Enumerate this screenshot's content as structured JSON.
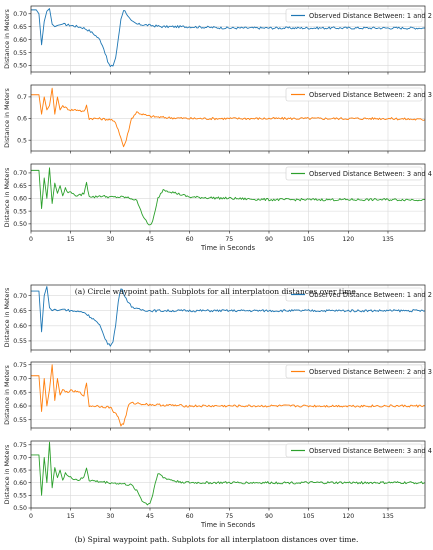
{
  "captions": [
    "(a)  Circle waypoint path. Subplots for all interplatoon distances over time.",
    "(b)  Spiral waypoint path. Subplots for all interplatoon distances over time."
  ],
  "colors": {
    "series_1_2": "#1f77b4",
    "series_2_3": "#ff7f0e",
    "series_3_4": "#2ca02c"
  },
  "chart_data": [
    {
      "type": "line",
      "figure": "a",
      "panel": 1,
      "ylabel": "Distance in Meters",
      "xlabel": "",
      "xlim": [
        0,
        149
      ],
      "ylim": [
        0.475,
        0.73
      ],
      "yticks": [
        0.5,
        0.55,
        0.6,
        0.65,
        0.7
      ],
      "xticks": [
        0,
        15,
        30,
        45,
        60,
        75,
        90,
        105,
        120,
        135
      ],
      "xtick_labels_shown": false,
      "grid": true,
      "legend": "top-right",
      "series": [
        {
          "name": "Observed Distance Between: 1 and 2",
          "color": "#1f77b4",
          "x": [
            0,
            2,
            3,
            4,
            5,
            6,
            7,
            8,
            9,
            10,
            12,
            15,
            18,
            20,
            22,
            24,
            26,
            27,
            28,
            29,
            30,
            31,
            32,
            33,
            34,
            35,
            36,
            37,
            38,
            40,
            45,
            50,
            60,
            75,
            90,
            105,
            120,
            135,
            149
          ],
          "y": [
            0.715,
            0.715,
            0.7,
            0.58,
            0.67,
            0.71,
            0.72,
            0.66,
            0.65,
            0.655,
            0.66,
            0.655,
            0.65,
            0.645,
            0.635,
            0.62,
            0.6,
            0.58,
            0.55,
            0.515,
            0.495,
            0.5,
            0.53,
            0.6,
            0.68,
            0.715,
            0.705,
            0.685,
            0.67,
            0.66,
            0.655,
            0.65,
            0.65,
            0.645,
            0.645,
            0.645,
            0.645,
            0.645,
            0.645
          ]
        }
      ]
    },
    {
      "type": "line",
      "figure": "a",
      "panel": 2,
      "ylabel": "Distance in Meters",
      "xlabel": "",
      "xlim": [
        0,
        149
      ],
      "ylim": [
        0.45,
        0.755
      ],
      "yticks": [
        0.5,
        0.6,
        0.7
      ],
      "xticks": [
        0,
        15,
        30,
        45,
        60,
        75,
        90,
        105,
        120,
        135
      ],
      "xtick_labels_shown": false,
      "grid": true,
      "legend": "top-right",
      "series": [
        {
          "name": "Observed Distance Between: 2 and 3",
          "color": "#ff7f0e",
          "x": [
            0,
            3,
            4,
            5,
            6,
            7,
            8,
            9,
            10,
            11,
            12,
            13,
            14,
            15,
            18,
            20,
            21,
            22,
            25,
            30,
            32,
            33,
            34,
            35,
            36,
            37,
            38,
            40,
            42,
            45,
            50,
            60,
            75,
            90,
            105,
            120,
            135,
            149
          ],
          "y": [
            0.71,
            0.71,
            0.62,
            0.7,
            0.64,
            0.66,
            0.74,
            0.62,
            0.7,
            0.64,
            0.66,
            0.65,
            0.645,
            0.64,
            0.64,
            0.63,
            0.66,
            0.6,
            0.6,
            0.595,
            0.58,
            0.55,
            0.51,
            0.47,
            0.5,
            0.55,
            0.6,
            0.63,
            0.62,
            0.61,
            0.605,
            0.6,
            0.6,
            0.6,
            0.6,
            0.6,
            0.6,
            0.595
          ]
        }
      ]
    },
    {
      "type": "line",
      "figure": "a",
      "panel": 3,
      "ylabel": "Distance in Meters",
      "xlabel": "Time in Seconds",
      "xlim": [
        0,
        149
      ],
      "ylim": [
        0.472,
        0.735
      ],
      "yticks": [
        0.5,
        0.55,
        0.6,
        0.65,
        0.7
      ],
      "xticks": [
        0,
        15,
        30,
        45,
        60,
        75,
        90,
        105,
        120,
        135
      ],
      "xtick_labels_shown": true,
      "grid": true,
      "legend": "top-right",
      "series": [
        {
          "name": "Observed Distance Between: 3 and 4",
          "color": "#2ca02c",
          "x": [
            0,
            3,
            4,
            5,
            6,
            7,
            8,
            9,
            10,
            11,
            12,
            13,
            14,
            15,
            16,
            18,
            20,
            21,
            22,
            24,
            26,
            30,
            35,
            38,
            40,
            41,
            42,
            43,
            44,
            45,
            46,
            47,
            48,
            50,
            55,
            60,
            75,
            90,
            105,
            120,
            135,
            149
          ],
          "y": [
            0.71,
            0.71,
            0.56,
            0.68,
            0.6,
            0.72,
            0.58,
            0.66,
            0.62,
            0.65,
            0.61,
            0.64,
            0.62,
            0.63,
            0.615,
            0.61,
            0.62,
            0.66,
            0.61,
            0.605,
            0.61,
            0.605,
            0.605,
            0.6,
            0.59,
            0.57,
            0.54,
            0.52,
            0.5,
            0.495,
            0.51,
            0.55,
            0.6,
            0.635,
            0.62,
            0.605,
            0.6,
            0.595,
            0.595,
            0.595,
            0.595,
            0.595
          ]
        }
      ]
    },
    {
      "type": "line",
      "figure": "b",
      "panel": 1,
      "ylabel": "Distance in Meters",
      "xlabel": "",
      "xlim": [
        0,
        149
      ],
      "ylim": [
        0.52,
        0.735
      ],
      "yticks": [
        0.55,
        0.6,
        0.65,
        0.7
      ],
      "xticks": [
        0,
        15,
        30,
        45,
        60,
        75,
        90,
        105,
        120,
        135
      ],
      "xtick_labels_shown": false,
      "grid": true,
      "legend": "top-right",
      "series": [
        {
          "name": "Observed Distance Between: 1 and 2",
          "color": "#1f77b4",
          "x": [
            0,
            3,
            4,
            5,
            6,
            7,
            8,
            9,
            10,
            12,
            15,
            20,
            24,
            26,
            27,
            28,
            29,
            30,
            31,
            32,
            33,
            34,
            35,
            36,
            37,
            38,
            40,
            45,
            60,
            75,
            90,
            105,
            120,
            135,
            149
          ],
          "y": [
            0.715,
            0.715,
            0.58,
            0.7,
            0.73,
            0.66,
            0.65,
            0.655,
            0.65,
            0.655,
            0.65,
            0.645,
            0.62,
            0.6,
            0.58,
            0.56,
            0.54,
            0.535,
            0.55,
            0.6,
            0.68,
            0.725,
            0.71,
            0.69,
            0.675,
            0.665,
            0.655,
            0.65,
            0.65,
            0.65,
            0.65,
            0.65,
            0.65,
            0.65,
            0.65
          ]
        }
      ]
    },
    {
      "type": "line",
      "figure": "b",
      "panel": 2,
      "ylabel": "Distance in Meters",
      "xlabel": "",
      "xlim": [
        0,
        149
      ],
      "ylim": [
        0.52,
        0.76
      ],
      "yticks": [
        0.55,
        0.6,
        0.65,
        0.7,
        0.75
      ],
      "xticks": [
        0,
        15,
        30,
        45,
        60,
        75,
        90,
        105,
        120,
        135
      ],
      "xtick_labels_shown": false,
      "grid": true,
      "legend": "top-right",
      "series": [
        {
          "name": "Observed Distance Between: 2 and 3",
          "color": "#ff7f0e",
          "x": [
            0,
            3,
            4,
            5,
            6,
            7,
            8,
            9,
            10,
            11,
            12,
            13,
            15,
            18,
            20,
            21,
            22,
            25,
            30,
            33,
            34,
            35,
            36,
            37,
            38,
            40,
            45,
            60,
            75,
            90,
            105,
            120,
            135,
            149
          ],
          "y": [
            0.71,
            0.71,
            0.58,
            0.7,
            0.6,
            0.66,
            0.75,
            0.62,
            0.7,
            0.64,
            0.66,
            0.65,
            0.655,
            0.65,
            0.64,
            0.68,
            0.6,
            0.6,
            0.595,
            0.56,
            0.53,
            0.535,
            0.57,
            0.605,
            0.61,
            0.61,
            0.605,
            0.6,
            0.6,
            0.6,
            0.6,
            0.6,
            0.6,
            0.6
          ]
        }
      ]
    },
    {
      "type": "line",
      "figure": "b",
      "panel": 3,
      "ylabel": "Distance in Meters",
      "xlabel": "Time in Seconds",
      "xlim": [
        0,
        149
      ],
      "ylim": [
        0.5,
        0.765
      ],
      "yticks": [
        0.5,
        0.55,
        0.6,
        0.65,
        0.7,
        0.75
      ],
      "xticks": [
        0,
        15,
        30,
        45,
        60,
        75,
        90,
        105,
        120,
        135
      ],
      "xtick_labels_shown": true,
      "grid": true,
      "legend": "top-right",
      "series": [
        {
          "name": "Observed Distance Between: 3 and 4",
          "color": "#2ca02c",
          "x": [
            0,
            3,
            4,
            5,
            6,
            7,
            8,
            9,
            10,
            11,
            12,
            13,
            14,
            15,
            18,
            20,
            21,
            22,
            25,
            30,
            35,
            38,
            40,
            41,
            42,
            43,
            44,
            45,
            46,
            47,
            48,
            50,
            55,
            60,
            75,
            90,
            105,
            120,
            135,
            149
          ],
          "y": [
            0.71,
            0.71,
            0.55,
            0.7,
            0.6,
            0.76,
            0.58,
            0.66,
            0.62,
            0.65,
            0.61,
            0.64,
            0.625,
            0.62,
            0.61,
            0.62,
            0.66,
            0.61,
            0.605,
            0.6,
            0.595,
            0.59,
            0.57,
            0.55,
            0.53,
            0.52,
            0.515,
            0.52,
            0.55,
            0.6,
            0.64,
            0.62,
            0.605,
            0.6,
            0.6,
            0.6,
            0.6,
            0.6,
            0.6,
            0.6
          ]
        }
      ]
    }
  ]
}
